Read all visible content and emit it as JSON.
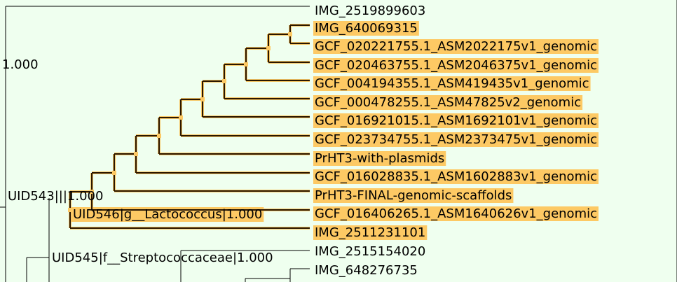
{
  "colors": {
    "background": "#efffef",
    "highlight": "#fdc964",
    "selected_branch": "#2b1700",
    "selected_glow": "#f6c766",
    "plain_branch": "#000000",
    "node_dot": "#fdc964"
  },
  "tree": {
    "leaves": [
      {
        "id": "leaf-img-2519899603",
        "label": "IMG_2519899603",
        "highlighted": false
      },
      {
        "id": "leaf-img-640069315",
        "label": "IMG_640069315",
        "highlighted": true
      },
      {
        "id": "leaf-gcf-020221755",
        "label": "GCF_020221755.1_ASM2022175v1_genomic",
        "highlighted": true
      },
      {
        "id": "leaf-gcf-020463755",
        "label": "GCF_020463755.1_ASM2046375v1_genomic",
        "highlighted": true
      },
      {
        "id": "leaf-gcf-004194355",
        "label": "GCF_004194355.1_ASM419435v1_genomic",
        "highlighted": true
      },
      {
        "id": "leaf-gcf-000478255",
        "label": "GCF_000478255.1_ASM47825v2_genomic",
        "highlighted": true
      },
      {
        "id": "leaf-gcf-016921015",
        "label": "GCF_016921015.1_ASM1692101v1_genomic",
        "highlighted": true
      },
      {
        "id": "leaf-gcf-023734755",
        "label": "GCF_023734755.1_ASM2373475v1_genomic",
        "highlighted": true
      },
      {
        "id": "leaf-prht3-with-plasmids",
        "label": "PrHT3-with-plasmids",
        "highlighted": true
      },
      {
        "id": "leaf-gcf-016028835",
        "label": "GCF_016028835.1_ASM1602883v1_genomic",
        "highlighted": true
      },
      {
        "id": "leaf-prht3-final",
        "label": "PrHT3-FINAL-genomic-scaffolds",
        "highlighted": true
      },
      {
        "id": "leaf-gcf-016406265",
        "label": "GCF_016406265.1_ASM1640626v1_genomic",
        "highlighted": true
      },
      {
        "id": "leaf-img-2511231101",
        "label": "IMG_2511231101",
        "highlighted": true
      },
      {
        "id": "leaf-img-2515154020",
        "label": "IMG_2515154020",
        "highlighted": false
      },
      {
        "id": "leaf-img-648276735",
        "label": "IMG_648276735",
        "highlighted": false
      }
    ],
    "internal_labels": [
      {
        "id": "support-label",
        "label": "1.000",
        "highlighted": false
      },
      {
        "id": "node-uid543",
        "label": "UID543|||1.000",
        "highlighted": false
      },
      {
        "id": "node-uid546",
        "label": "UID546|g__Lactococcus|1.000",
        "highlighted": true
      },
      {
        "id": "node-uid545",
        "label": "UID545|f__Streptococcaceae|1.000",
        "highlighted": false
      }
    ]
  }
}
